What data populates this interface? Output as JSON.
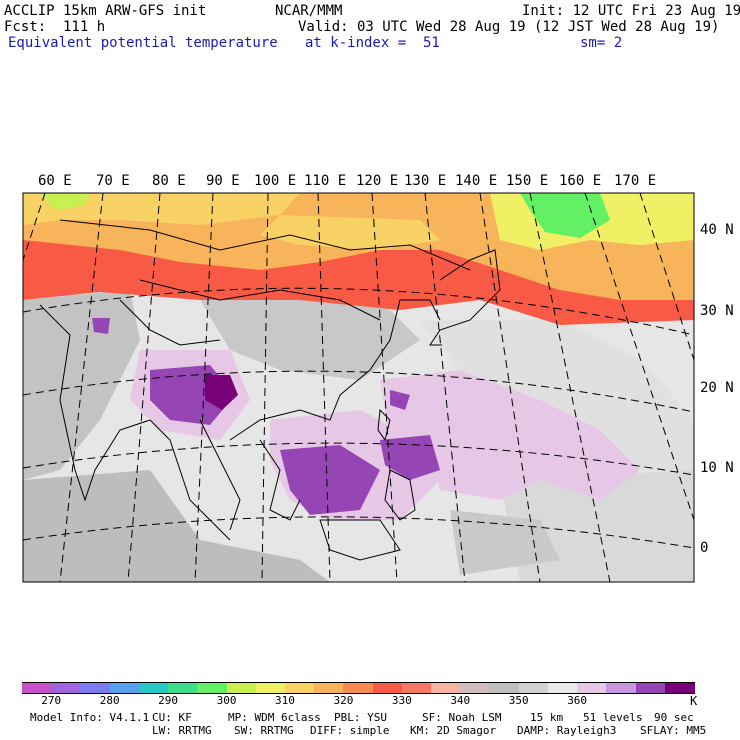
{
  "header": {
    "model": "ACCLIP 15km ARW-GFS init",
    "fcst": "Fcst:  111 h",
    "field": "Equivalent potential temperature",
    "center": "NCAR/MMM",
    "init": "Init: 12 UTC Fri 23 Aug 19",
    "valid": "Valid: 03 UTC Wed 28 Aug 19 (12 JST Wed 28 Aug 19)",
    "level": "at k-index =  51",
    "smooth": "sm= 2"
  },
  "map": {
    "lon_labels": [
      "60 E",
      "70 E",
      "80 E",
      "90 E",
      "100 E",
      "110 E",
      "120 E",
      "130 E",
      "140 E",
      "150 E",
      "160 E",
      "170 E"
    ],
    "lat_labels": [
      "40 N",
      "30 N",
      "20 N",
      "10 N",
      "0"
    ]
  },
  "colorbar": {
    "colors": [
      "#c850c8",
      "#a064dc",
      "#7c7cf0",
      "#5aa0f0",
      "#28c8c8",
      "#3ce08c",
      "#64f064",
      "#c8f050",
      "#f0f064",
      "#f8d264",
      "#f8b45a",
      "#f88c50",
      "#f85a46",
      "#f87864",
      "#f8b4a0",
      "#d2bebe",
      "#bebebe",
      "#d2d2d2",
      "#ebebeb",
      "#e6c8e6",
      "#c896dc",
      "#9646b4",
      "#780078"
    ],
    "labels": [
      "270",
      "280",
      "290",
      "300",
      "310",
      "320",
      "330",
      "340",
      "350",
      "360"
    ],
    "unit": "K"
  },
  "footer": {
    "line1": [
      "Model Info: V4.1.1",
      "CU: KF",
      "MP: WDM 6class",
      "PBL: YSU",
      "SF: Noah LSM",
      "15 km",
      "51 levels",
      "90 sec"
    ],
    "line2": [
      "LW: RRTMG",
      "SW: RRTMG",
      "DIFF: simple",
      "KM: 2D Smagor",
      "DAMP: Rayleigh3",
      "SFLAY: MM5"
    ]
  }
}
